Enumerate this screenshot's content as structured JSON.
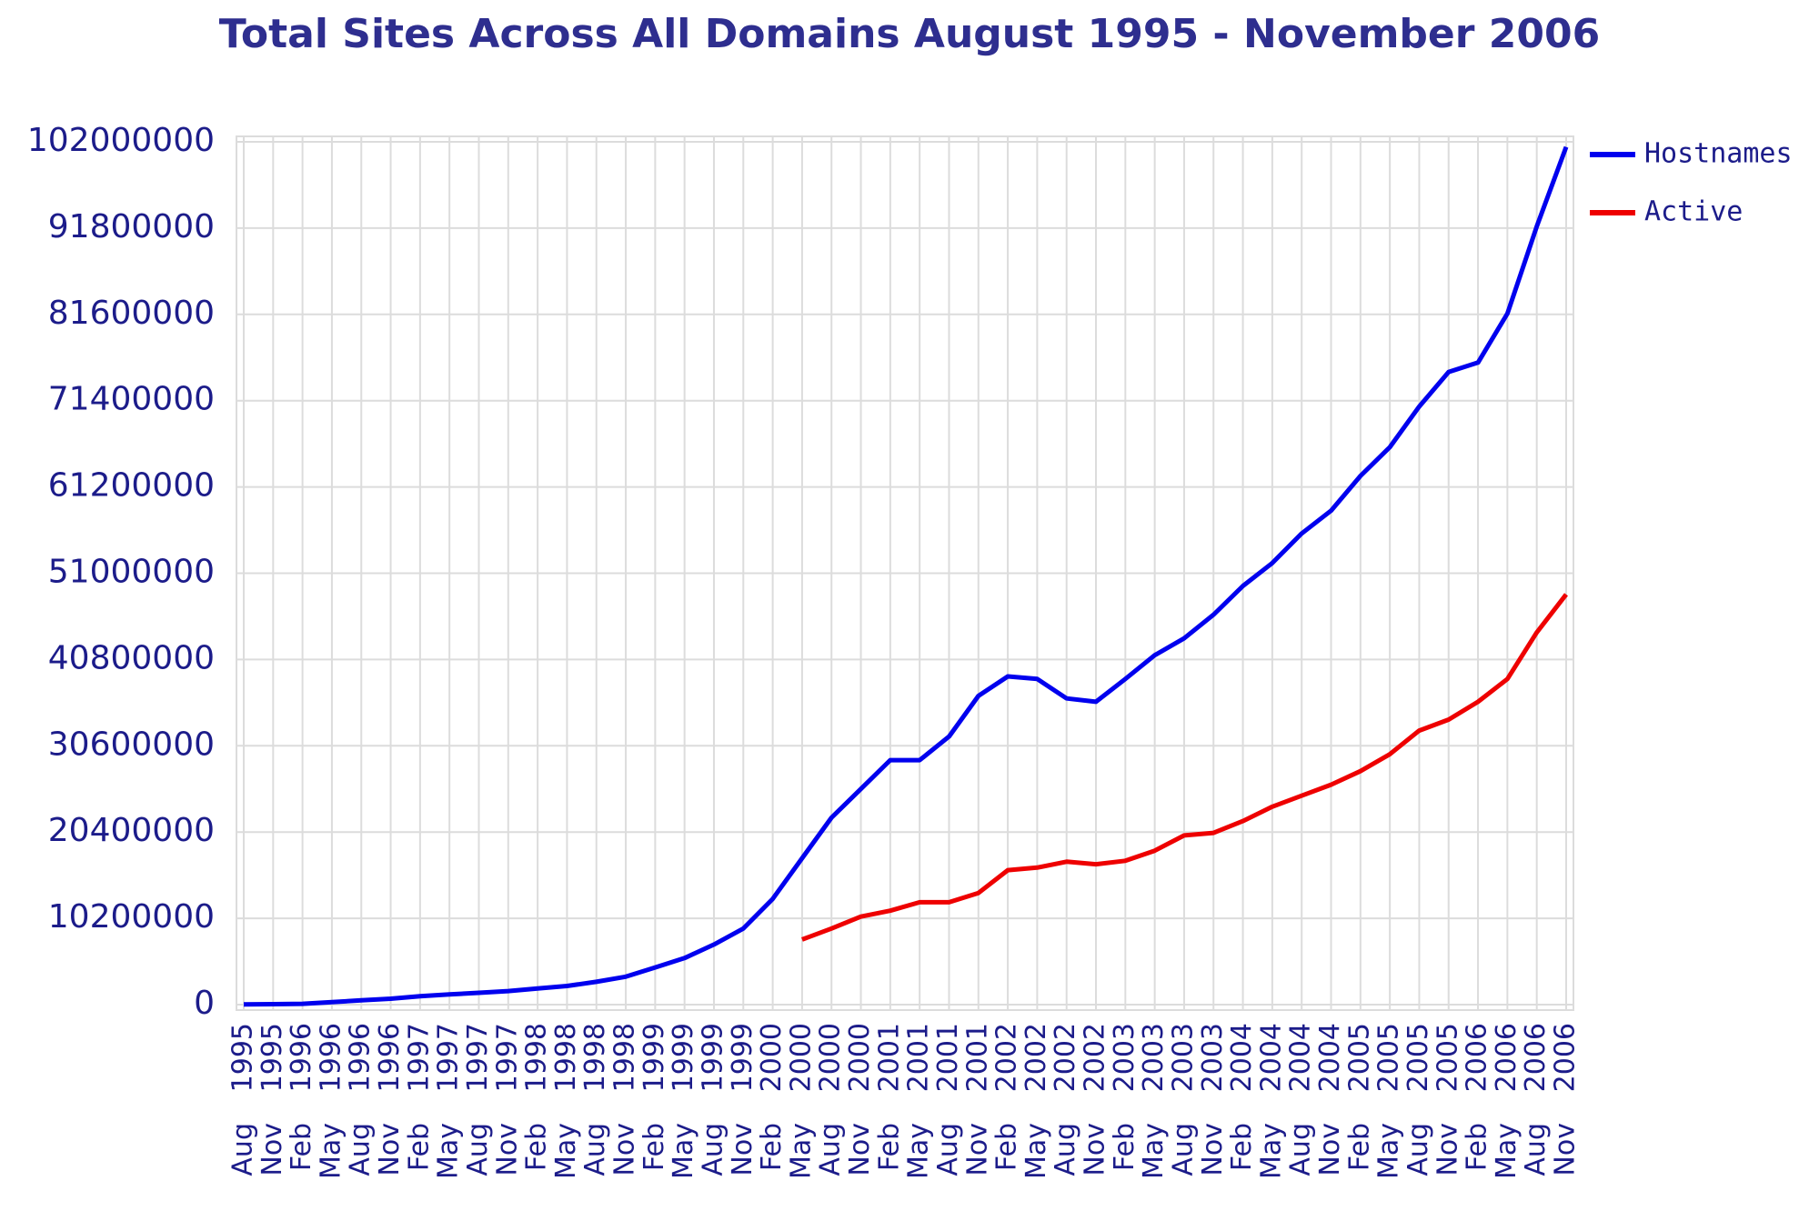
{
  "chart_data": {
    "type": "line",
    "title": "Total Sites Across All Domains August 1995 - November 2006",
    "categories": [
      {
        "year": "1995",
        "month": "Aug"
      },
      {
        "year": "1995",
        "month": "Nov"
      },
      {
        "year": "1996",
        "month": "Feb"
      },
      {
        "year": "1996",
        "month": "May"
      },
      {
        "year": "1996",
        "month": "Aug"
      },
      {
        "year": "1996",
        "month": "Nov"
      },
      {
        "year": "1997",
        "month": "Feb"
      },
      {
        "year": "1997",
        "month": "May"
      },
      {
        "year": "1997",
        "month": "Aug"
      },
      {
        "year": "1997",
        "month": "Nov"
      },
      {
        "year": "1998",
        "month": "Feb"
      },
      {
        "year": "1998",
        "month": "May"
      },
      {
        "year": "1998",
        "month": "Aug"
      },
      {
        "year": "1998",
        "month": "Nov"
      },
      {
        "year": "1999",
        "month": "Feb"
      },
      {
        "year": "1999",
        "month": "May"
      },
      {
        "year": "1999",
        "month": "Aug"
      },
      {
        "year": "1999",
        "month": "Nov"
      },
      {
        "year": "2000",
        "month": "Feb"
      },
      {
        "year": "2000",
        "month": "May"
      },
      {
        "year": "2000",
        "month": "Aug"
      },
      {
        "year": "2000",
        "month": "Nov"
      },
      {
        "year": "2001",
        "month": "Feb"
      },
      {
        "year": "2001",
        "month": "May"
      },
      {
        "year": "2001",
        "month": "Aug"
      },
      {
        "year": "2001",
        "month": "Nov"
      },
      {
        "year": "2002",
        "month": "Feb"
      },
      {
        "year": "2002",
        "month": "May"
      },
      {
        "year": "2002",
        "month": "Aug"
      },
      {
        "year": "2002",
        "month": "Nov"
      },
      {
        "year": "2003",
        "month": "Feb"
      },
      {
        "year": "2003",
        "month": "May"
      },
      {
        "year": "2003",
        "month": "Aug"
      },
      {
        "year": "2003",
        "month": "Nov"
      },
      {
        "year": "2004",
        "month": "Feb"
      },
      {
        "year": "2004",
        "month": "May"
      },
      {
        "year": "2004",
        "month": "Aug"
      },
      {
        "year": "2004",
        "month": "Nov"
      },
      {
        "year": "2005",
        "month": "Feb"
      },
      {
        "year": "2005",
        "month": "May"
      },
      {
        "year": "2005",
        "month": "Aug"
      },
      {
        "year": "2005",
        "month": "Nov"
      },
      {
        "year": "2006",
        "month": "Feb"
      },
      {
        "year": "2006",
        "month": "May"
      },
      {
        "year": "2006",
        "month": "Aug"
      },
      {
        "year": "2006",
        "month": "Nov"
      }
    ],
    "series": [
      {
        "name": "Hostnames",
        "color": "#0000ee",
        "values": [
          20000,
          50000,
          100000,
          300000,
          500000,
          700000,
          1000000,
          1200000,
          1400000,
          1600000,
          1900000,
          2200000,
          2700000,
          3300000,
          4400000,
          5500000,
          7100000,
          9000000,
          12500000,
          17300000,
          22100000,
          25500000,
          28900000,
          28900000,
          31700000,
          36500000,
          38800000,
          38500000,
          36200000,
          35800000,
          38500000,
          41300000,
          43300000,
          46100000,
          49500000,
          52200000,
          55700000,
          58400000,
          62500000,
          65900000,
          70700000,
          74800000,
          75900000,
          81700000,
          92000000,
          101400000
        ]
      },
      {
        "name": "Active",
        "color": "#ee0000",
        "values": [
          null,
          null,
          null,
          null,
          null,
          null,
          null,
          null,
          null,
          null,
          null,
          null,
          null,
          null,
          null,
          null,
          null,
          null,
          null,
          7700000,
          9000000,
          10400000,
          11100000,
          12100000,
          12100000,
          13200000,
          15900000,
          16200000,
          16900000,
          16600000,
          17000000,
          18200000,
          20000000,
          20300000,
          21700000,
          23400000,
          24700000,
          26000000,
          27600000,
          29600000,
          32400000,
          33700000,
          35800000,
          38500000,
          44000000,
          48500000
        ]
      }
    ],
    "ylim": [
      0,
      102000000
    ],
    "yticks": [
      0,
      10200000,
      20400000,
      30600000,
      40800000,
      51000000,
      61200000,
      71400000,
      81600000,
      91800000,
      102000000
    ],
    "grid": true,
    "legend": "right"
  }
}
